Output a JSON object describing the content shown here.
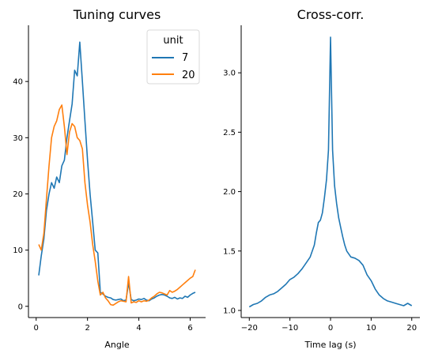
{
  "chart_data": [
    {
      "type": "line",
      "title": "Tuning curves",
      "xlabel": "Angle",
      "ylabel": "",
      "xlim": [
        -0.3,
        6.6
      ],
      "ylim": [
        -2,
        50
      ],
      "xticks": [
        0,
        2,
        4,
        6
      ],
      "yticks": [
        0,
        10,
        20,
        30,
        40
      ],
      "grid": false,
      "legend": {
        "title": "unit",
        "placement": "top-right"
      },
      "series": [
        {
          "name": "7",
          "color": "#1f77b4",
          "x": [
            0.1,
            0.2,
            0.3,
            0.4,
            0.5,
            0.6,
            0.7,
            0.8,
            0.9,
            1.0,
            1.1,
            1.2,
            1.3,
            1.4,
            1.5,
            1.6,
            1.7,
            1.8,
            1.9,
            2.0,
            2.1,
            2.2,
            2.3,
            2.4,
            2.5,
            2.6,
            2.7,
            2.8,
            2.9,
            3.0,
            3.1,
            3.2,
            3.3,
            3.4,
            3.5,
            3.6,
            3.7,
            3.8,
            3.9,
            4.0,
            4.1,
            4.2,
            4.3,
            4.4,
            4.5,
            4.6,
            4.7,
            4.8,
            4.9,
            5.0,
            5.1,
            5.2,
            5.3,
            5.4,
            5.5,
            5.6,
            5.7,
            5.8,
            5.9,
            6.0,
            6.1,
            6.2
          ],
          "y": [
            5.5,
            9,
            12,
            17,
            20,
            22,
            21,
            23,
            22,
            25,
            26,
            30,
            33,
            36,
            42,
            41,
            47,
            40,
            33,
            26,
            20,
            15,
            10,
            9.5,
            2.5,
            2.2,
            1.8,
            1.6,
            1.5,
            1.2,
            1.1,
            1.2,
            1.3,
            1.0,
            1.1,
            4.2,
            1.2,
            1.0,
            1.1,
            1.3,
            1.2,
            1.4,
            1.1,
            1.0,
            1.3,
            1.5,
            1.8,
            2.0,
            2.1,
            2.0,
            1.8,
            1.5,
            1.4,
            1.6,
            1.3,
            1.5,
            1.4,
            1.8,
            1.6,
            2.0,
            2.3,
            2.5
          ]
        },
        {
          "name": "20",
          "color": "#ff7f0e",
          "x": [
            0.1,
            0.2,
            0.3,
            0.4,
            0.5,
            0.6,
            0.7,
            0.8,
            0.9,
            1.0,
            1.1,
            1.2,
            1.3,
            1.4,
            1.5,
            1.6,
            1.7,
            1.8,
            1.9,
            2.0,
            2.1,
            2.2,
            2.3,
            2.4,
            2.5,
            2.6,
            2.7,
            2.8,
            2.9,
            3.0,
            3.1,
            3.2,
            3.3,
            3.4,
            3.5,
            3.6,
            3.7,
            3.8,
            3.9,
            4.0,
            4.1,
            4.2,
            4.3,
            4.4,
            4.5,
            4.6,
            4.7,
            4.8,
            4.9,
            5.0,
            5.1,
            5.2,
            5.3,
            5.4,
            5.5,
            5.6,
            5.7,
            5.8,
            5.9,
            6.0,
            6.1,
            6.2
          ],
          "y": [
            11,
            10,
            13,
            19,
            25,
            30,
            32,
            33,
            35,
            35.8,
            32,
            27,
            31,
            32.5,
            32,
            30,
            29.5,
            28,
            22,
            18,
            15,
            11,
            8,
            4.5,
            2.0,
            2.5,
            1.5,
            1.0,
            0.3,
            0.2,
            0.5,
            0.8,
            1.0,
            0.9,
            0.8,
            5.3,
            0.6,
            0.8,
            0.7,
            1.0,
            0.8,
            1.0,
            0.9,
            1.1,
            1.5,
            1.8,
            2.2,
            2.5,
            2.4,
            2.2,
            2.0,
            2.8,
            2.5,
            2.7,
            3.0,
            3.4,
            3.8,
            4.2,
            4.6,
            5.0,
            5.3,
            6.5
          ]
        }
      ]
    },
    {
      "type": "line",
      "title": "Cross-corr.",
      "xlabel": "Time lag (s)",
      "ylabel": "",
      "xlim": [
        -22,
        22
      ],
      "ylim": [
        0.94,
        3.4
      ],
      "xticks": [
        -20,
        -10,
        0,
        10,
        20
      ],
      "yticks": [
        1.0,
        1.5,
        2.0,
        2.5,
        3.0
      ],
      "grid": false,
      "series": [
        {
          "color": "#1f77b4",
          "x": [
            -20,
            -19,
            -18,
            -17,
            -16,
            -15,
            -14,
            -13,
            -12,
            -11,
            -10,
            -9,
            -8,
            -7,
            -6,
            -5,
            -4,
            -3.5,
            -3,
            -2.5,
            -2,
            -1.5,
            -1,
            -0.5,
            0,
            0.5,
            1,
            1.5,
            2,
            2.5,
            3,
            3.5,
            4,
            5,
            6,
            7,
            8,
            9,
            10,
            11,
            12,
            13,
            14,
            15,
            16,
            17,
            18,
            19,
            20
          ],
          "y": [
            1.03,
            1.05,
            1.06,
            1.08,
            1.11,
            1.13,
            1.14,
            1.16,
            1.19,
            1.22,
            1.26,
            1.28,
            1.31,
            1.35,
            1.4,
            1.45,
            1.55,
            1.65,
            1.74,
            1.76,
            1.82,
            1.95,
            2.1,
            2.35,
            3.3,
            2.35,
            2.05,
            1.9,
            1.78,
            1.7,
            1.62,
            1.55,
            1.5,
            1.45,
            1.44,
            1.42,
            1.38,
            1.3,
            1.25,
            1.18,
            1.13,
            1.1,
            1.08,
            1.07,
            1.06,
            1.05,
            1.04,
            1.06,
            1.04
          ]
        }
      ]
    }
  ]
}
